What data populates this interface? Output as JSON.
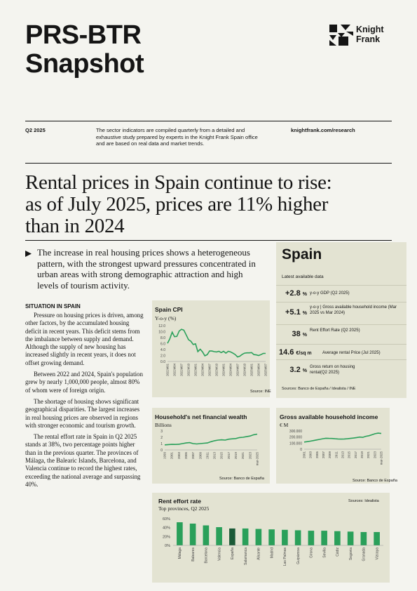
{
  "header": {
    "title_line1": "PRS-BTR",
    "title_line2": "Snapshot",
    "logo_line1": "Knight",
    "logo_line2": "Frank",
    "quarter": "Q2 2025",
    "description_line1": "The sector indicators are compiled quarterly from a detailed and",
    "description_line2": "exhaustive study prepared by experts in the Knight Frank Spain office",
    "description_line3": "and are based on real data and market trends.",
    "website": "knightfrank.com/research"
  },
  "headline": {
    "line1": "Rental prices in Spain continue to rise:",
    "line2": "as of July 2025, prices are 11% higher",
    "line3": "than in 2024"
  },
  "intro": {
    "text": "The increase in real housing prices shows a heterogeneous pattern, with the strongest upward pressures concentrated in urban areas with strong demographic attraction and high levels of tourism activity."
  },
  "situation": {
    "heading": "SITUATION IN SPAIN",
    "paragraphs": [
      "Pressure on housing prices is driven, among other factors, by the accumulated housing deficit in recent years. This deficit stems from the imbalance between supply and demand. Although the supply of new housing has increased slightly in recent years, it does not offset growing demand.",
      "Between 2022 and 2024, Spain's population grew by nearly 1,000,000 people, almost 80% of whom were of foreign origin.",
      "The shortage of housing shows significant geographical disparities. The largest increases in real housing prices are observed in regions with stronger economic and tourism growth.",
      "The rental effort rate in Spain in Q2 2025 stands at 38%, two percentage points higher than in the previous quarter. The provinces of Málaga, the Balearic Islands, Barcelona, and Valencia continue to record the highest rates, exceeding the national average and surpassing 40%."
    ]
  },
  "spain_panel": {
    "title": "Spain",
    "subtitle": "Latest available data",
    "kpis": [
      {
        "value": "+2.8",
        "unit": "%",
        "desc": "y-o-y GDP (Q2 2025)"
      },
      {
        "value": "+5.1",
        "unit": "%",
        "desc": "y-o-y | Gross available household income (Mar 2025 vs Mar 2024)"
      },
      {
        "value": "38",
        "unit": "%",
        "desc": "Rent Effort Rate (Q2 2025)"
      },
      {
        "value": "14.6",
        "unit": "€/sq m",
        "desc": "Average rental Price (Jul 2025)"
      },
      {
        "value": "3.2",
        "unit": "%",
        "desc": "Gross return on housing rental(Q2 2025)"
      }
    ],
    "source": "Sources: Banco de España / Idealista / INE"
  },
  "chart_data": [
    {
      "id": "cpi",
      "type": "line",
      "title": "Spain CPI",
      "ylabel": "Y-o-y (%)",
      "source": "Source: INE",
      "ylim": [
        0,
        12
      ],
      "yticks": [
        "12.0",
        "10.0",
        "8.0",
        "6.0",
        "4.0",
        "2.0",
        "0.0"
      ],
      "xtick_labels": [
        "2022M01",
        "2022M04",
        "2022M07",
        "2022M10",
        "2023M01",
        "2023M04",
        "2023M07",
        "2023M10",
        "2024M01",
        "2024M04",
        "2024M07",
        "2024M10",
        "2025M01",
        "2025M04",
        "2025M07"
      ],
      "values": [
        6.1,
        7.6,
        9.8,
        8.3,
        8.4,
        10.2,
        10.8,
        10.5,
        8.9,
        7.3,
        6.8,
        5.7,
        5.9,
        3.3,
        4.1,
        3.2,
        1.9,
        2.3,
        3.5,
        3.5,
        3.3,
        3.2,
        3.4,
        3.0,
        3.4,
        2.8,
        3.4,
        3.2,
        2.8,
        2.3,
        1.5,
        1.8,
        2.4,
        2.8,
        2.9,
        2.9,
        3.0,
        2.3,
        2.2,
        2.0,
        2.3,
        2.7,
        2.7
      ]
    },
    {
      "id": "wealth",
      "type": "line",
      "title": "Household's net financial wealth",
      "ylabel": "Billions",
      "source": "Source: Banco de España",
      "ylim": [
        0,
        3
      ],
      "yticks": [
        "3",
        "2",
        "1",
        "0"
      ],
      "xtick_labels": [
        "1999",
        "2001",
        "2003",
        "2005",
        "2007",
        "2009",
        "2011",
        "2013",
        "2015",
        "2017",
        "2019",
        "2021",
        "2023",
        "mar-2025"
      ],
      "values": [
        0.8,
        0.85,
        0.88,
        0.87,
        0.9,
        1.0,
        1.1,
        1.15,
        1.0,
        0.95,
        1.0,
        1.05,
        1.1,
        1.3,
        1.45,
        1.55,
        1.6,
        1.55,
        1.7,
        1.75,
        1.8,
        1.95,
        2.0,
        2.1,
        2.2,
        2.4,
        2.5
      ]
    },
    {
      "id": "income",
      "type": "line",
      "title": "Gross available household income",
      "ylabel": "€ M",
      "source": "Source: Banco de España",
      "ylim": [
        0,
        300000
      ],
      "yticks": [
        "300.000",
        "200.000",
        "100.000",
        "0"
      ],
      "xtick_labels": [
        "2001",
        "2003",
        "2005",
        "2007",
        "2009",
        "2011",
        "2013",
        "2015",
        "2017",
        "2019",
        "2021",
        "2023",
        "mar-2025"
      ],
      "values": [
        118000,
        125000,
        133000,
        142000,
        152000,
        162000,
        172000,
        180000,
        178000,
        176000,
        172000,
        168000,
        166000,
        168000,
        172000,
        178000,
        184000,
        192000,
        200000,
        195000,
        212000,
        222000,
        238000,
        255000,
        264000,
        258000
      ]
    },
    {
      "id": "effort",
      "type": "bar",
      "title": "Rent effort rate",
      "subtitle": "Top provinces, Q2 2025",
      "source": "Sources: Idealista",
      "ylim": [
        0,
        60
      ],
      "yticks": [
        "60%",
        "40%",
        "20%",
        "0%"
      ],
      "categories": [
        "Málaga",
        "Baleares",
        "Barcelona",
        "Valencia",
        "España",
        "Salamanca",
        "Alicante",
        "Madrid",
        "Las Palmas",
        "Guipúzcoa",
        "Girona",
        "Sevilla",
        "Cádiz",
        "Segovia",
        "Granada",
        "Vizcaya"
      ],
      "values": [
        52,
        49,
        45,
        41,
        38,
        38,
        37,
        36,
        35,
        34,
        33,
        33,
        32,
        31,
        30,
        30
      ],
      "highlight": "España",
      "colors": {
        "bar": "#2aa05a",
        "highlight": "#1b5a37"
      }
    }
  ],
  "colors": {
    "accent": "#2aa05a",
    "panel": "#e3e3d2",
    "background": "#f4f4ef",
    "text": "#151515"
  }
}
